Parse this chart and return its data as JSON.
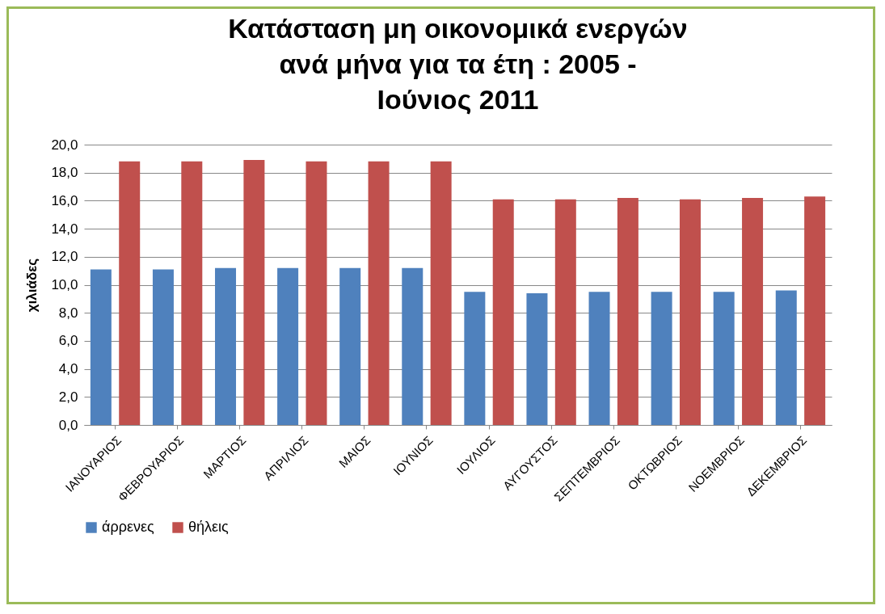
{
  "chart_data": {
    "type": "bar",
    "title": "Κατάσταση μη οικονομικά ενεργών ανά μήνα για τα έτη : 2005 - Ιούνιος 2011",
    "ylabel": "χιλιάδες",
    "categories": [
      "ΙΑΝΟΥΑΡΙΟΣ",
      "ΦΕΒΡΟΥΑΡΙΟΣ",
      "ΜΑΡΤΙΟΣ",
      "ΑΠΡΙΛΙΟΣ",
      "ΜΑΙΟΣ",
      "ΙΟΥΝΙΟΣ",
      "ΙΟΥΛΙΟΣ",
      "ΑΥΓΟΥΣΤΟΣ",
      "ΣΕΠΤΕΜΒΡΙΟΣ",
      "ΟΚΤΩΒΡΙΟΣ",
      "ΝΟΕΜΒΡΙΟΣ",
      "ΔΕΚΕΜΒΡΙΟΣ"
    ],
    "series": [
      {
        "name": "άρρενες",
        "color": "#4f81bd",
        "values": [
          11.1,
          11.1,
          11.2,
          11.2,
          11.2,
          11.2,
          9.5,
          9.4,
          9.5,
          9.5,
          9.5,
          9.6
        ]
      },
      {
        "name": "θήλεις",
        "color": "#c0504d",
        "values": [
          18.8,
          18.8,
          18.9,
          18.8,
          18.8,
          18.8,
          16.1,
          16.1,
          16.2,
          16.1,
          16.2,
          16.3
        ]
      }
    ],
    "ylim": [
      0,
      20
    ],
    "yticks": [
      {
        "value": 0,
        "label": "0,0"
      },
      {
        "value": 2,
        "label": "2,0"
      },
      {
        "value": 4,
        "label": "4,0"
      },
      {
        "value": 6,
        "label": "6,0"
      },
      {
        "value": 8,
        "label": "8,0"
      },
      {
        "value": 10,
        "label": "10,0"
      },
      {
        "value": 12,
        "label": "12,0"
      },
      {
        "value": 14,
        "label": "14,0"
      },
      {
        "value": 16,
        "label": "16,0"
      },
      {
        "value": 18,
        "label": "18,0"
      },
      {
        "value": 20,
        "label": "20,0"
      }
    ],
    "grid": "y",
    "legend": "bottom"
  }
}
